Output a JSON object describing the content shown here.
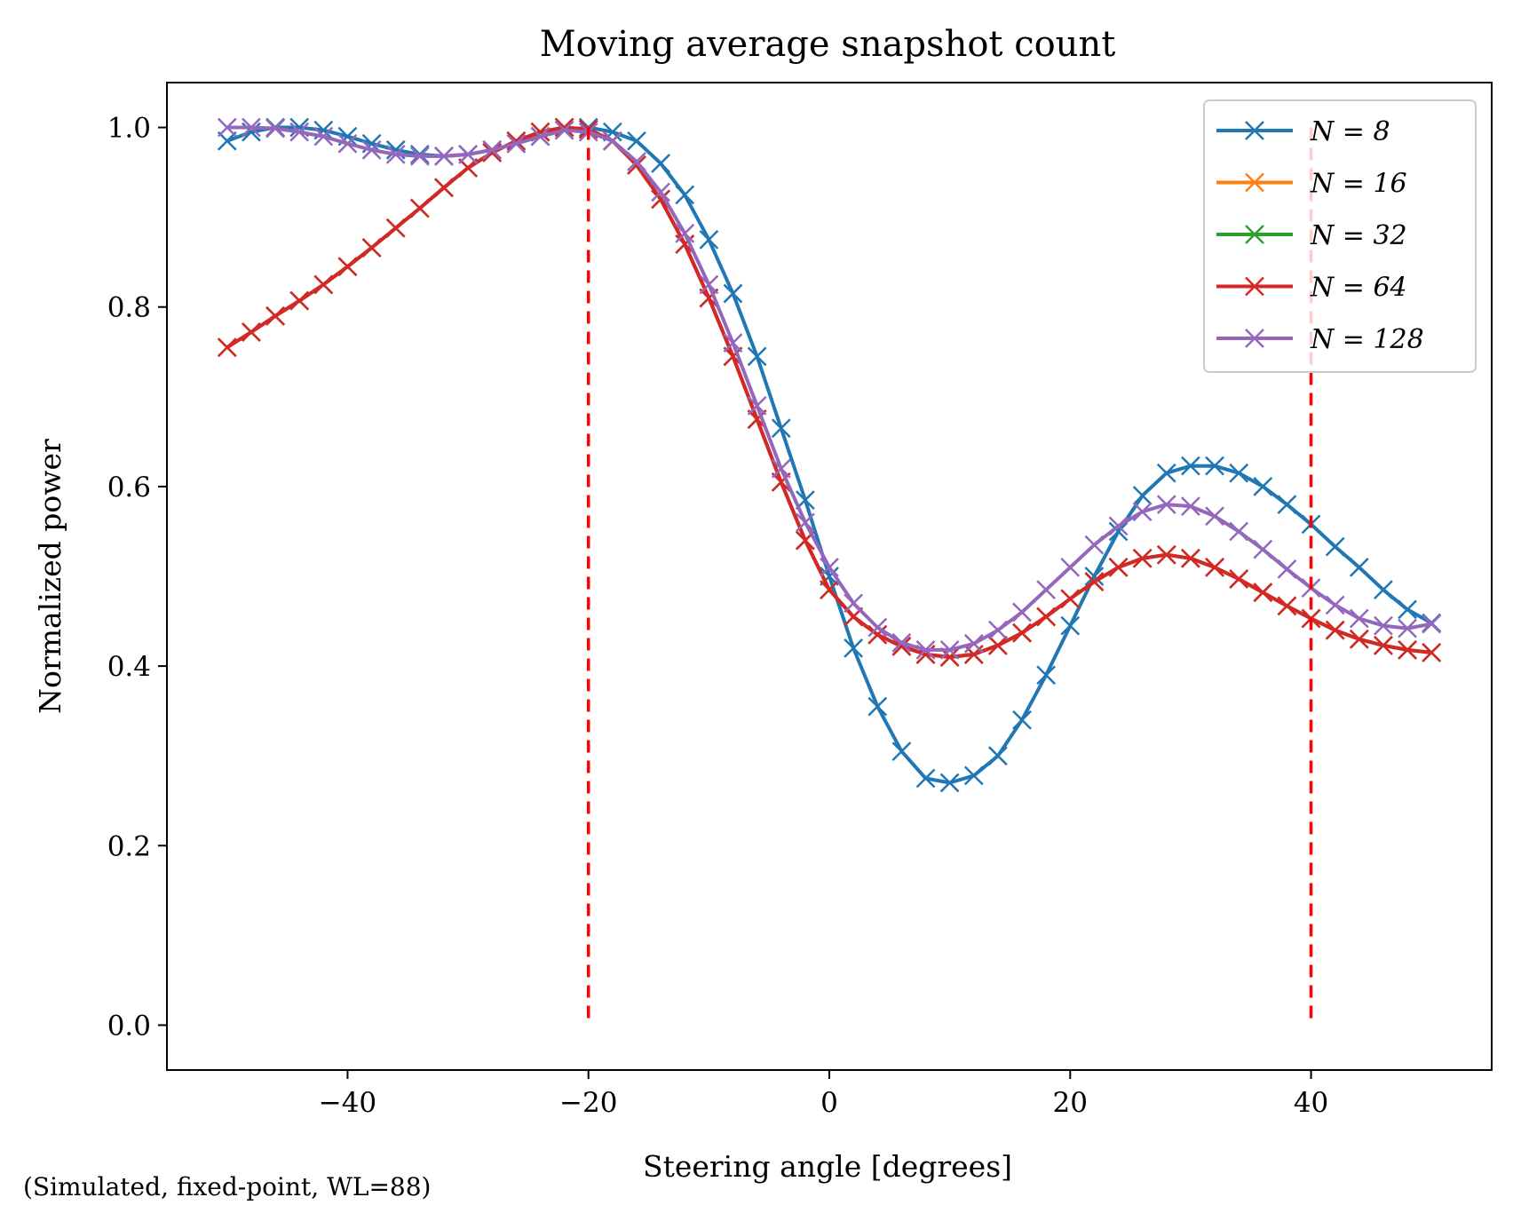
{
  "chart_data": {
    "type": "line",
    "title": "Moving average snapshot count",
    "xlabel": "Steering angle [degrees]",
    "ylabel": "Normalized power",
    "footnote": "(Simulated, fixed-point, WL=88)",
    "xlim": [
      -55,
      55
    ],
    "ylim": [
      -0.05,
      1.05
    ],
    "xticks": [
      -40,
      -20,
      0,
      20,
      40
    ],
    "xtick_labels": [
      "−40",
      "−20",
      "0",
      "20",
      "40"
    ],
    "yticks": [
      0.0,
      0.2,
      0.4,
      0.6,
      0.8,
      1.0
    ],
    "ytick_labels": [
      "0.0",
      "0.2",
      "0.4",
      "0.6",
      "0.8",
      "1.0"
    ],
    "grid": false,
    "legend_position": "top-right",
    "marker": "x",
    "vlines": [
      {
        "x": -20,
        "ymin": 0,
        "ymax": 1.0,
        "color": "#ff0000",
        "style": "dashed"
      },
      {
        "x": 40,
        "ymin": 0,
        "ymax": 1.0,
        "color": "#ff0000",
        "style": "dashed"
      }
    ],
    "x": [
      -50,
      -48,
      -46,
      -44,
      -42,
      -40,
      -38,
      -36,
      -34,
      -32,
      -30,
      -28,
      -26,
      -24,
      -22,
      -20,
      -18,
      -16,
      -14,
      -12,
      -10,
      -8,
      -6,
      -4,
      -2,
      0,
      2,
      4,
      6,
      8,
      10,
      12,
      14,
      16,
      18,
      20,
      22,
      24,
      26,
      28,
      30,
      32,
      34,
      36,
      38,
      40,
      42,
      44,
      46,
      48,
      50
    ],
    "series": [
      {
        "name": "N = 8",
        "color": "#1f77b4",
        "values": [
          0.985,
          0.995,
          1.0,
          1.0,
          0.997,
          0.99,
          0.982,
          0.975,
          0.97,
          0.968,
          0.97,
          0.975,
          0.982,
          0.99,
          0.997,
          1.0,
          0.995,
          0.985,
          0.96,
          0.925,
          0.875,
          0.815,
          0.745,
          0.665,
          0.585,
          0.5,
          0.42,
          0.355,
          0.305,
          0.275,
          0.27,
          0.278,
          0.3,
          0.34,
          0.39,
          0.445,
          0.5,
          0.55,
          0.59,
          0.615,
          0.623,
          0.623,
          0.615,
          0.6,
          0.58,
          0.558,
          0.533,
          0.51,
          0.485,
          0.463,
          0.448
        ]
      },
      {
        "name": "N = 16",
        "color": "#ff7f0e",
        "values": [
          0.755,
          0.772,
          0.79,
          0.807,
          0.825,
          0.845,
          0.866,
          0.888,
          0.91,
          0.933,
          0.955,
          0.972,
          0.985,
          0.995,
          1.0,
          0.998,
          0.985,
          0.958,
          0.92,
          0.87,
          0.81,
          0.745,
          0.675,
          0.605,
          0.54,
          0.485,
          0.455,
          0.435,
          0.422,
          0.413,
          0.41,
          0.413,
          0.423,
          0.437,
          0.455,
          0.475,
          0.494,
          0.51,
          0.52,
          0.524,
          0.52,
          0.51,
          0.497,
          0.482,
          0.467,
          0.453,
          0.44,
          0.43,
          0.423,
          0.418,
          0.415
        ]
      },
      {
        "name": "N = 32",
        "color": "#2ca02c",
        "values": [
          0.755,
          0.772,
          0.79,
          0.807,
          0.825,
          0.845,
          0.866,
          0.888,
          0.91,
          0.933,
          0.955,
          0.972,
          0.985,
          0.995,
          1.0,
          0.998,
          0.985,
          0.958,
          0.92,
          0.87,
          0.81,
          0.745,
          0.675,
          0.605,
          0.54,
          0.485,
          0.455,
          0.435,
          0.422,
          0.413,
          0.41,
          0.413,
          0.423,
          0.437,
          0.455,
          0.475,
          0.494,
          0.51,
          0.52,
          0.524,
          0.52,
          0.51,
          0.497,
          0.482,
          0.467,
          0.453,
          0.44,
          0.43,
          0.423,
          0.418,
          0.415
        ]
      },
      {
        "name": "N = 64",
        "color": "#d62728",
        "values": [
          0.755,
          0.772,
          0.79,
          0.807,
          0.825,
          0.845,
          0.866,
          0.888,
          0.91,
          0.933,
          0.955,
          0.972,
          0.985,
          0.995,
          1.0,
          0.998,
          0.985,
          0.958,
          0.92,
          0.87,
          0.81,
          0.745,
          0.675,
          0.605,
          0.54,
          0.485,
          0.455,
          0.435,
          0.422,
          0.413,
          0.41,
          0.413,
          0.423,
          0.437,
          0.455,
          0.475,
          0.494,
          0.51,
          0.52,
          0.524,
          0.52,
          0.51,
          0.497,
          0.482,
          0.467,
          0.453,
          0.44,
          0.43,
          0.423,
          0.418,
          0.415
        ]
      },
      {
        "name": "N = 128",
        "color": "#9467bd",
        "values": [
          1.0,
          1.0,
          0.999,
          0.995,
          0.99,
          0.982,
          0.975,
          0.97,
          0.968,
          0.968,
          0.97,
          0.975,
          0.982,
          0.99,
          0.997,
          0.995,
          0.985,
          0.962,
          0.928,
          0.882,
          0.825,
          0.76,
          0.69,
          0.62,
          0.56,
          0.51,
          0.47,
          0.443,
          0.426,
          0.418,
          0.418,
          0.425,
          0.44,
          0.46,
          0.485,
          0.51,
          0.535,
          0.556,
          0.572,
          0.58,
          0.578,
          0.567,
          0.55,
          0.53,
          0.508,
          0.487,
          0.468,
          0.453,
          0.445,
          0.442,
          0.447
        ]
      }
    ]
  }
}
